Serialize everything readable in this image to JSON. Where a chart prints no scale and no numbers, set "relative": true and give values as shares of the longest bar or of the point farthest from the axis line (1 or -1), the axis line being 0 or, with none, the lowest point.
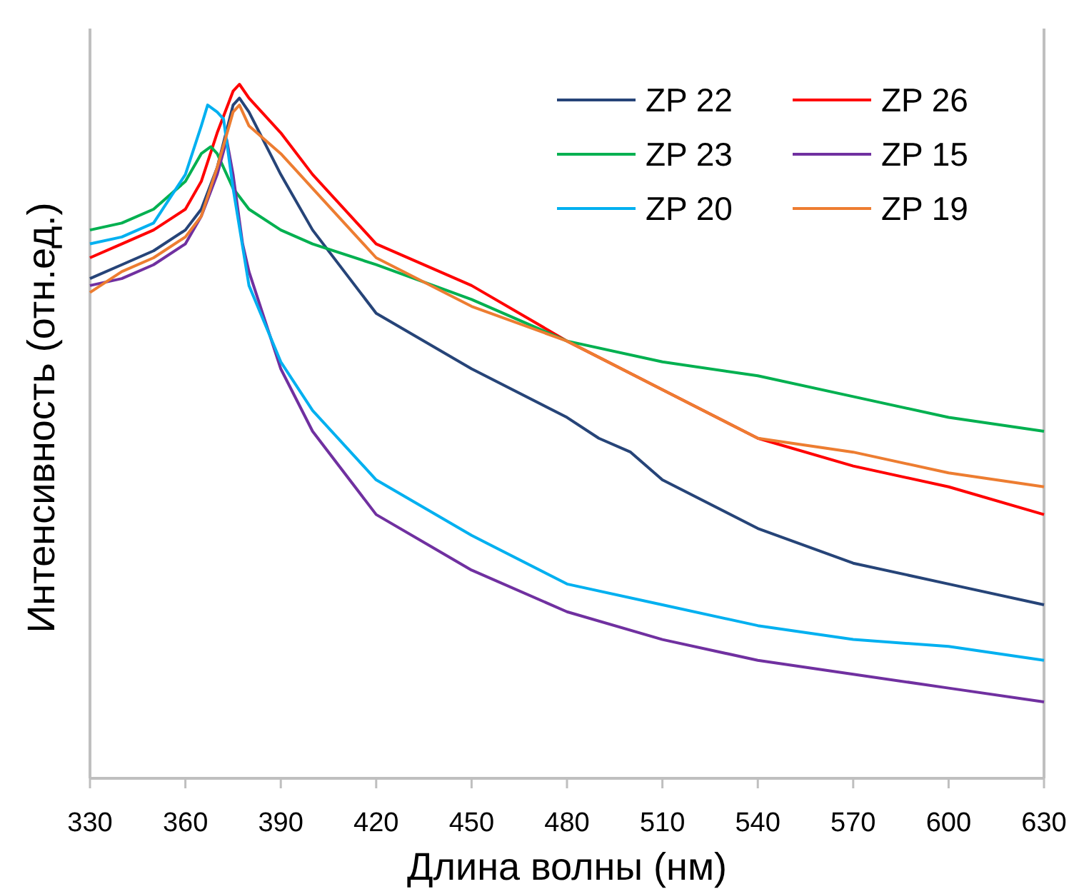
{
  "chart_data": {
    "type": "line",
    "relative": true,
    "xlabel": "Длина волны (нм)",
    "ylabel": "Интенсивность (отн.ед.)",
    "xlim": [
      330,
      630
    ],
    "xticks": [
      330,
      360,
      390,
      420,
      450,
      480,
      510,
      540,
      570,
      600,
      630
    ],
    "legend": "top right",
    "grid": false,
    "series": [
      {
        "name": "ZP 22",
        "color": "#264478",
        "x": [
          330,
          340,
          350,
          360,
          365,
          370,
          375,
          377,
          380,
          390,
          400,
          420,
          450,
          480,
          490,
          500,
          510,
          540,
          570,
          600,
          630
        ],
        "values": [
          0.72,
          0.74,
          0.76,
          0.79,
          0.82,
          0.88,
          0.97,
          0.98,
          0.96,
          0.87,
          0.79,
          0.67,
          0.59,
          0.52,
          0.49,
          0.47,
          0.43,
          0.36,
          0.31,
          0.28,
          0.25
        ]
      },
      {
        "name": "ZP 26",
        "color": "#ff0000",
        "x": [
          330,
          340,
          350,
          360,
          365,
          370,
          375,
          377,
          380,
          390,
          400,
          420,
          450,
          480,
          510,
          540,
          570,
          600,
          630
        ],
        "values": [
          0.75,
          0.77,
          0.79,
          0.82,
          0.86,
          0.93,
          0.99,
          1,
          0.98,
          0.93,
          0.87,
          0.77,
          0.71,
          0.63,
          0.56,
          0.49,
          0.45,
          0.42,
          0.38
        ]
      },
      {
        "name": "ZP 23",
        "color": "#00b050",
        "x": [
          330,
          340,
          350,
          360,
          365,
          368,
          370,
          375,
          380,
          390,
          400,
          420,
          450,
          480,
          510,
          540,
          570,
          600,
          630
        ],
        "values": [
          0.79,
          0.8,
          0.82,
          0.86,
          0.9,
          0.91,
          0.9,
          0.85,
          0.82,
          0.79,
          0.77,
          0.74,
          0.69,
          0.63,
          0.6,
          0.58,
          0.55,
          0.52,
          0.5
        ]
      },
      {
        "name": "ZP 15",
        "color": "#7030a0",
        "x": [
          330,
          340,
          350,
          360,
          365,
          370,
          373,
          375,
          378,
          380,
          390,
          400,
          420,
          450,
          480,
          510,
          540,
          570,
          600,
          630
        ],
        "values": [
          0.71,
          0.72,
          0.74,
          0.77,
          0.81,
          0.87,
          0.92,
          0.87,
          0.77,
          0.73,
          0.59,
          0.5,
          0.38,
          0.3,
          0.24,
          0.2,
          0.17,
          0.15,
          0.13,
          0.11
        ]
      },
      {
        "name": "ZP 20",
        "color": "#00b0f0",
        "x": [
          330,
          340,
          350,
          360,
          365,
          367,
          370,
          372,
          375,
          380,
          390,
          400,
          420,
          450,
          480,
          510,
          540,
          570,
          600,
          630
        ],
        "values": [
          0.77,
          0.78,
          0.8,
          0.87,
          0.94,
          0.97,
          0.96,
          0.95,
          0.85,
          0.71,
          0.6,
          0.53,
          0.43,
          0.35,
          0.28,
          0.25,
          0.22,
          0.2,
          0.19,
          0.17
        ]
      },
      {
        "name": "ZP 19",
        "color": "#ed7d31",
        "x": [
          330,
          340,
          350,
          360,
          365,
          370,
          375,
          377,
          380,
          390,
          400,
          420,
          450,
          480,
          510,
          540,
          570,
          600,
          630
        ],
        "values": [
          0.7,
          0.73,
          0.75,
          0.78,
          0.81,
          0.88,
          0.96,
          0.97,
          0.94,
          0.9,
          0.85,
          0.75,
          0.68,
          0.63,
          0.56,
          0.49,
          0.47,
          0.44,
          0.42
        ]
      }
    ]
  }
}
